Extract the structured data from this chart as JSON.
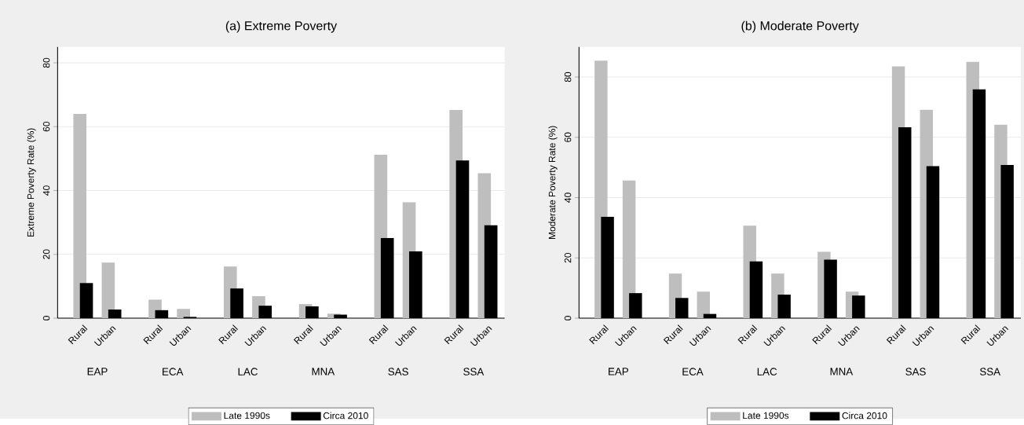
{
  "chart_data": [
    {
      "type": "bar",
      "title": "(a) Extreme Poverty",
      "ylabel": "Extreme Poverty Rate (%)",
      "categories": [
        "Rural",
        "Urban",
        "Rural",
        "Urban",
        "Rural",
        "Urban",
        "Rural",
        "Urban",
        "Rural",
        "Urban",
        "Rural",
        "Urban"
      ],
      "annotations": [
        "EAP",
        "ECA",
        "LAC",
        "MNA",
        "SAS",
        "SSA"
      ],
      "series": [
        {
          "name": "Late 1990s",
          "color": "#bebebe",
          "values": [
            64.0,
            17.4,
            5.8,
            2.9,
            16.2,
            6.9,
            4.4,
            1.4,
            51.2,
            36.3,
            65.2,
            45.4
          ]
        },
        {
          "name": "Circa 2010",
          "color": "#000000",
          "values": [
            11.0,
            2.7,
            2.5,
            0.4,
            9.3,
            3.9,
            3.7,
            1.1,
            25.1,
            20.9,
            49.4,
            29.1
          ]
        }
      ],
      "ylim": [
        0,
        85
      ],
      "yticks": [
        0,
        20,
        40,
        60,
        80
      ],
      "grid": "y",
      "legend": "bottom"
    },
    {
      "type": "bar",
      "title": "(b) Moderate Poverty",
      "ylabel": "Moderate Poverty Rate (%)",
      "categories": [
        "Rural",
        "Urban",
        "Rural",
        "Urban",
        "Rural",
        "Urban",
        "Rural",
        "Urban",
        "Rural",
        "Urban",
        "Rural",
        "Urban"
      ],
      "annotations": [
        "EAP",
        "ECA",
        "LAC",
        "MNA",
        "SAS",
        "SSA"
      ],
      "series": [
        {
          "name": "Late 1990s",
          "color": "#bebebe",
          "values": [
            85.4,
            45.7,
            14.8,
            8.8,
            30.7,
            14.8,
            22.0,
            8.8,
            83.5,
            69.1,
            85.0,
            64.2
          ]
        },
        {
          "name": "Circa 2010",
          "color": "#000000",
          "values": [
            33.6,
            8.3,
            6.7,
            1.4,
            18.8,
            7.8,
            19.4,
            7.5,
            63.3,
            50.4,
            75.9,
            50.8
          ]
        }
      ],
      "ylim": [
        0,
        90
      ],
      "yticks": [
        0,
        20,
        40,
        60,
        80
      ],
      "grid": "y",
      "legend": "bottom"
    }
  ]
}
